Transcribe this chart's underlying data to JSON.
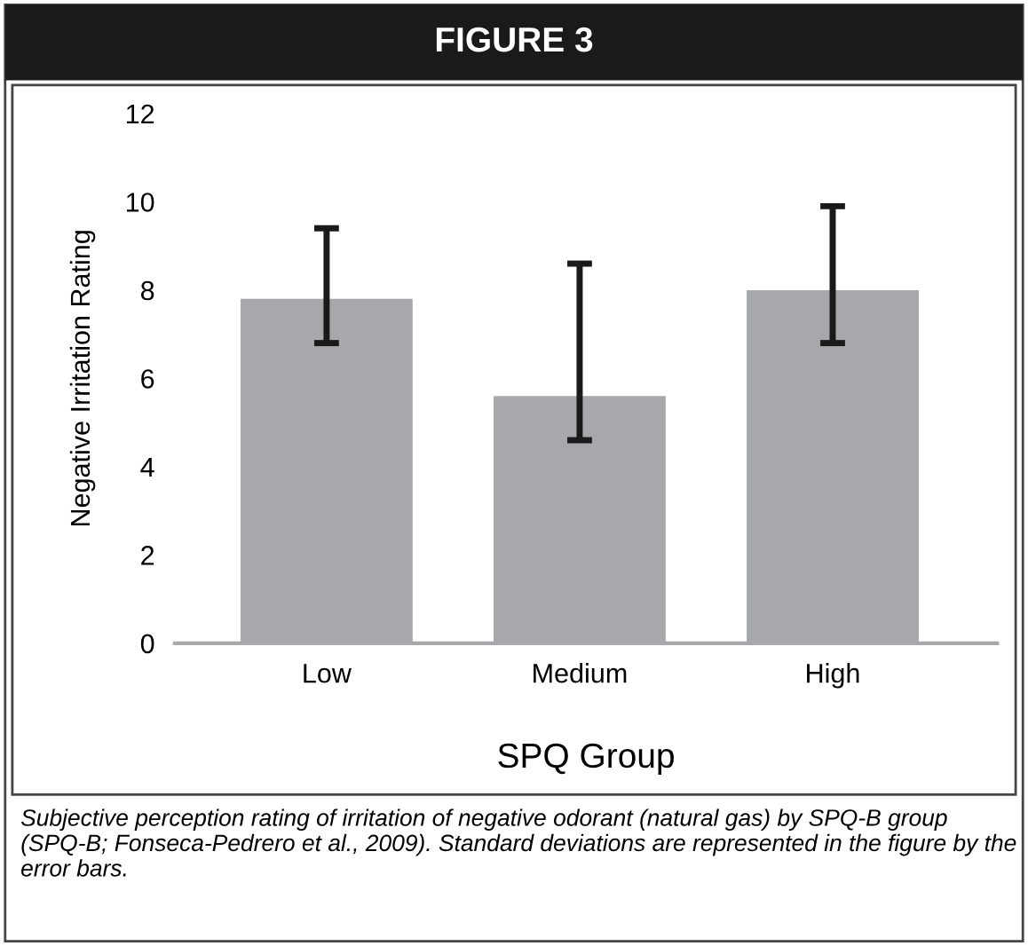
{
  "chart_data": {
    "type": "bar",
    "title": "FIGURE 3",
    "categories": [
      "Low",
      "Medium",
      "High"
    ],
    "values": [
      7.8,
      5.6,
      8.0
    ],
    "errors": [
      [
        6.8,
        9.4
      ],
      [
        4.6,
        8.6
      ],
      [
        6.8,
        9.9
      ]
    ],
    "color": "#a7a8ab",
    "xlabel": "SPQ Group",
    "ylabel": "Negative Irritation Rating",
    "ylim": [
      0,
      12
    ],
    "yticks": [
      0,
      2,
      4,
      6,
      8,
      10,
      12
    ],
    "grid": false,
    "legend": false,
    "annotations": [
      "Subjective perception rating of irritation of negative odorant (natural gas) by SPQ-B group (SPQ-B; Fonseca-Pedrero et al., 2009). Standard deviations are represented in the figure by the error bars."
    ]
  }
}
